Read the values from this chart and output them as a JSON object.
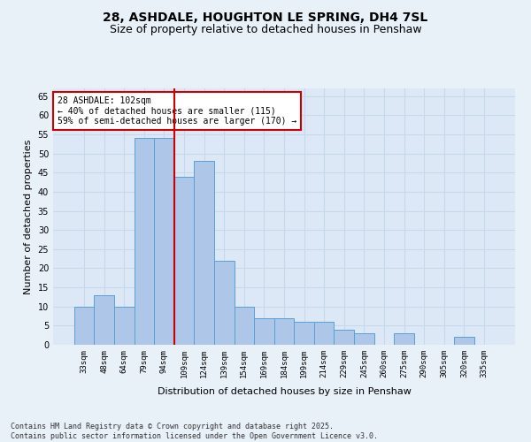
{
  "title": "28, ASHDALE, HOUGHTON LE SPRING, DH4 7SL",
  "subtitle": "Size of property relative to detached houses in Penshaw",
  "xlabel": "Distribution of detached houses by size in Penshaw",
  "ylabel": "Number of detached properties",
  "categories": [
    "33sqm",
    "48sqm",
    "64sqm",
    "79sqm",
    "94sqm",
    "109sqm",
    "124sqm",
    "139sqm",
    "154sqm",
    "169sqm",
    "184sqm",
    "199sqm",
    "214sqm",
    "229sqm",
    "245sqm",
    "260sqm",
    "275sqm",
    "290sqm",
    "305sqm",
    "320sqm",
    "335sqm"
  ],
  "values": [
    10,
    13,
    10,
    54,
    54,
    44,
    48,
    22,
    10,
    7,
    7,
    6,
    6,
    4,
    3,
    0,
    3,
    0,
    0,
    2,
    0
  ],
  "bar_color": "#aec6e8",
  "bar_edge_color": "#5a9fd4",
  "vline_x": 4.5,
  "vline_color": "#cc0000",
  "annotation_text": "28 ASHDALE: 102sqm\n← 40% of detached houses are smaller (115)\n59% of semi-detached houses are larger (170) →",
  "annotation_box_color": "#ffffff",
  "annotation_box_edge": "#cc0000",
  "background_color": "#e8f0f8",
  "plot_bg_color": "#dce8f5",
  "grid_color": "#c8d8ec",
  "title_fontsize": 10,
  "subtitle_fontsize": 9,
  "tick_fontsize": 6.5,
  "ylabel_fontsize": 8,
  "xlabel_fontsize": 8,
  "footer_text": "Contains HM Land Registry data © Crown copyright and database right 2025.\nContains public sector information licensed under the Open Government Licence v3.0.",
  "ylim": [
    0,
    67
  ]
}
